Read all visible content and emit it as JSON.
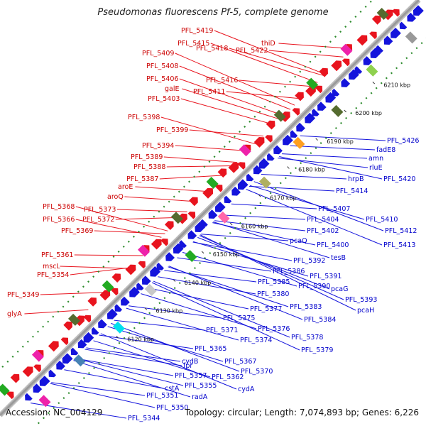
{
  "title": "Pseudomonas fluorescens Pf-5, complete genome",
  "footer": {
    "accession": "Accession: NC_004129",
    "summary": "Topology: circular; Length: 7,074,893 bp; Genes: 6,226"
  },
  "colors": {
    "forward": "#e8141e",
    "reverse": "#1414dc",
    "label_forward": "#cc0000",
    "label_reverse": "#0000cc",
    "backbone": "#9a9a9a",
    "dotted_ring": "#2a8a2a"
  },
  "ticks": [
    "6120 kbp",
    "6130 kbp",
    "6140 kbp",
    "6150 kbp",
    "6160 kbp",
    "6170 kbp",
    "6180 kbp",
    "6190 kbp",
    "6200 kbp",
    "6210 kbp"
  ],
  "forward_labels": [
    "PFL_5419",
    "PFL_5415",
    "PFL_5418",
    "thiD",
    "PFL_5422",
    "PFL_5409",
    "PFL_5408",
    "PFL_5416",
    "PFL_5406",
    "galE",
    "PFL_5411",
    "PFL_5403",
    "PFL_5398",
    "PFL_5399",
    "PFL_5394",
    "PFL_5389",
    "PFL_5388",
    "PFL_5387",
    "aroE",
    "aroQ",
    "PFL_5368",
    "PFL_5373",
    "PFL_5366",
    "PFL_5372",
    "PFL_5369",
    "PFL_5361",
    "mscL",
    "PFL_5354",
    "PFL_5349",
    "glyA"
  ],
  "reverse_labels": [
    "PFL_5426",
    "fadE8",
    "amn",
    "rluE",
    "hrpB",
    "PFL_5420",
    "PFL_5414",
    "PFL_5407",
    "PFL_5410",
    "PFL_5404",
    "PFL_5412",
    "PFL_5402",
    "PFL_5413",
    "pcaQ",
    "PFL_5400",
    "tesB",
    "PFL_5392",
    "PFL_5386",
    "PFL_5391",
    "PFL_5385",
    "PFL_5390",
    "pcaG",
    "PFL_5380",
    "PFL_5393",
    "PFL_5383",
    "pcaH",
    "PFL_5377",
    "PFL_5384",
    "PFL_5375",
    "PFL_5376",
    "PFL_5371",
    "PFL_5374",
    "PFL_5378",
    "PFL_5379",
    "PFL_5365",
    "PFL_5367",
    "cydB",
    "PFL_5370",
    "fpr",
    "PFL_5362",
    "PFL_5357",
    "cydA",
    "cstA",
    "PFL_5355",
    "PFL_5351",
    "radA",
    "PFL_5350",
    "PFL_5344"
  ]
}
